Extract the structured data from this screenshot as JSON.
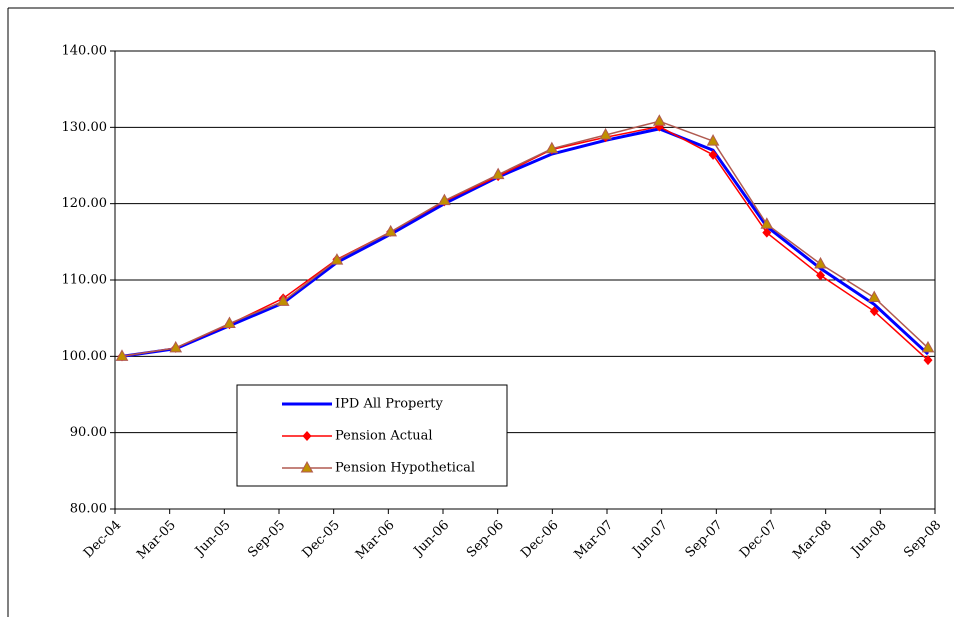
{
  "chart_data": {
    "type": "line",
    "categories": [
      "Dec-04",
      "Mar-05",
      "Jun-05",
      "Sep-05",
      "Dec-05",
      "Mar-06",
      "Jun-06",
      "Sep-06",
      "Dec-06",
      "Mar-07",
      "Jun-07",
      "Sep-07",
      "Dec-07",
      "Mar-08",
      "Jun-08",
      "Sep-08"
    ],
    "series": [
      {
        "name": "IPD All Property",
        "color": "#0000ff",
        "marker": "none",
        "width": 3,
        "values": [
          100,
          101,
          104,
          107,
          112.3,
          116,
          120,
          123.5,
          126.5,
          128.3,
          129.8,
          127,
          117,
          111.5,
          106.8,
          100.3
        ]
      },
      {
        "name": "Pension Actual",
        "color": "#ff0000",
        "marker": "diamond",
        "width": 1.5,
        "values": [
          100,
          101.1,
          104.2,
          107.6,
          112.7,
          116.3,
          120.3,
          123.6,
          127.1,
          128.7,
          130.1,
          126.4,
          116.2,
          110.6,
          105.9,
          99.5
        ]
      },
      {
        "name": "Pension Hypothetical",
        "color": "#b05a50",
        "marker": "triangle",
        "width": 1.5,
        "values": [
          100,
          101.1,
          104.3,
          107.2,
          112.6,
          116.3,
          120.4,
          123.8,
          127.2,
          129.0,
          130.8,
          128.2,
          117.3,
          112.1,
          107.7,
          101.1
        ]
      }
    ],
    "ylim": [
      80,
      140
    ],
    "yticks": [
      {
        "value": 80,
        "label": "80.00"
      },
      {
        "value": 90,
        "label": "90.00"
      },
      {
        "value": 100,
        "label": "100.00"
      },
      {
        "value": 110,
        "label": "110.00"
      },
      {
        "value": 120,
        "label": "120.00"
      },
      {
        "value": 130,
        "label": "130.00"
      },
      {
        "value": 140,
        "label": "140.00"
      }
    ],
    "grid": true
  }
}
